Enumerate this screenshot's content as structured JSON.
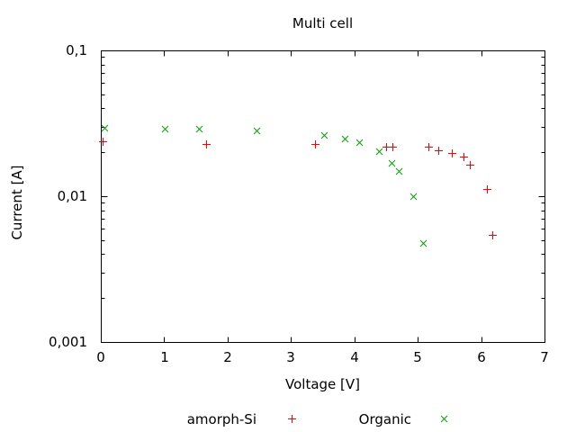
{
  "title": "Multi cell",
  "colors": {
    "axis": "#000000",
    "amorph_si": "#ff0000",
    "organic": "#00a000"
  },
  "axes": {
    "x": {
      "label": "Voltage [V]",
      "tick_labels": [
        "0",
        "1",
        "2",
        "3",
        "4",
        "5",
        "6",
        "7"
      ]
    },
    "y": {
      "label": "Current [A]",
      "scale": "log",
      "tick_labels": [
        "0,1",
        "0,01",
        "0,001"
      ]
    }
  },
  "legend": {
    "entries": [
      {
        "label": "amorph-Si",
        "marker": "plus-icon",
        "color": "#ff0000"
      },
      {
        "label": "Organic",
        "marker": "cross-icon",
        "color": "#00a000"
      }
    ],
    "position": "below"
  },
  "chart_data": {
    "type": "scatter",
    "title": "Multi cell",
    "xlabel": "Voltage [V]",
    "ylabel": "Current [A]",
    "xlim": [
      0,
      7
    ],
    "ylim": [
      0.001,
      0.1
    ],
    "yscale": "log",
    "grid": false,
    "x_ticks": [
      0,
      1,
      2,
      3,
      4,
      5,
      6,
      7
    ],
    "y_major_ticks": [
      0.001,
      0.01,
      0.1
    ],
    "y_tick_labels": [
      "0,001",
      "0,01",
      "0,1"
    ],
    "legend_position": "below",
    "series": [
      {
        "name": "amorph-Si",
        "marker": "plus",
        "color": "#ff0000",
        "points": [
          [
            0.03,
            0.0238
          ],
          [
            1.66,
            0.0229
          ],
          [
            3.38,
            0.0229
          ],
          [
            4.5,
            0.0219
          ],
          [
            4.6,
            0.0219
          ],
          [
            5.17,
            0.0217
          ],
          [
            5.32,
            0.0207
          ],
          [
            5.54,
            0.0197
          ],
          [
            5.72,
            0.0186
          ],
          [
            5.82,
            0.0164
          ],
          [
            6.09,
            0.0112
          ],
          [
            6.17,
            0.0054
          ]
        ]
      },
      {
        "name": "Organic",
        "marker": "cross",
        "color": "#00a000",
        "points": [
          [
            0.05,
            0.0295
          ],
          [
            1.01,
            0.0289
          ],
          [
            1.55,
            0.0289
          ],
          [
            2.46,
            0.0281
          ],
          [
            3.52,
            0.0263
          ],
          [
            3.85,
            0.0249
          ],
          [
            4.08,
            0.0236
          ],
          [
            4.39,
            0.0203
          ],
          [
            4.58,
            0.0169
          ],
          [
            4.7,
            0.0149
          ],
          [
            4.92,
            0.01
          ],
          [
            5.08,
            0.0048
          ]
        ]
      }
    ]
  }
}
